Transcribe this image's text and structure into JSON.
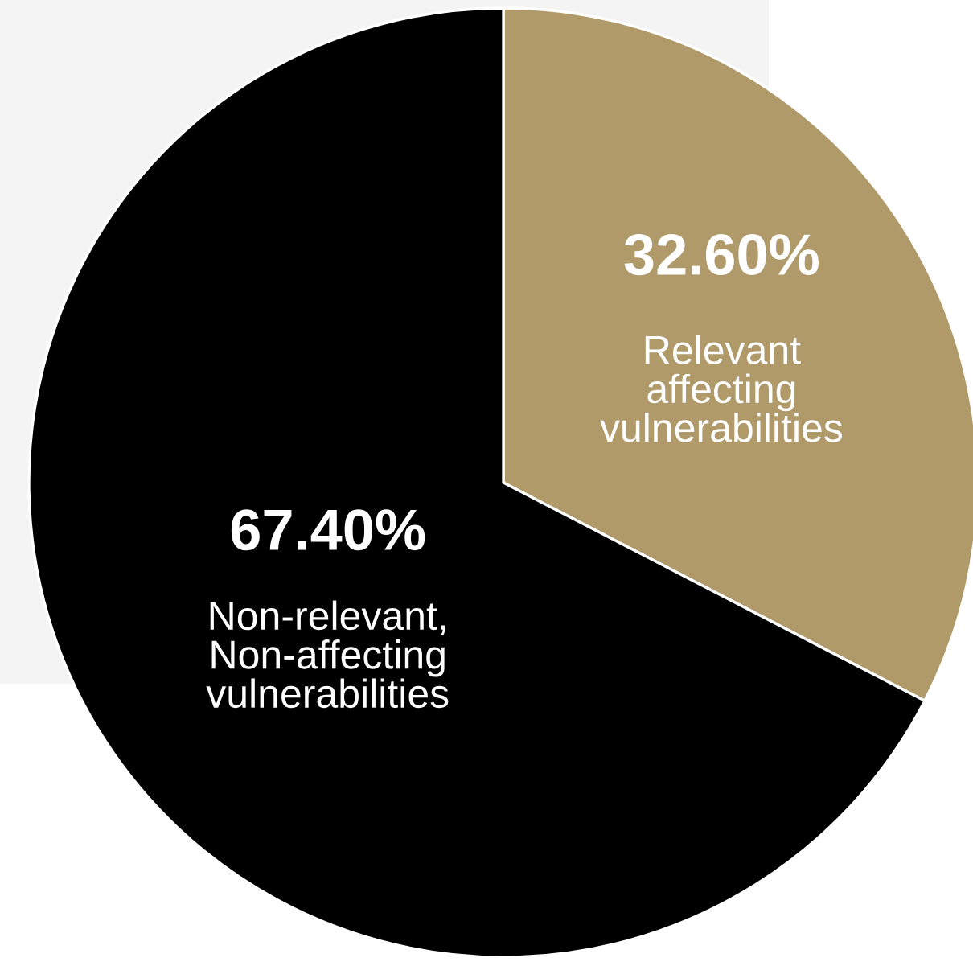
{
  "chart_data": {
    "type": "pie",
    "categories": [
      "Relevant\naffecting\nvulnerabilities",
      "Non-relevant,\nNon-affecting\nvulnerabilities"
    ],
    "values": [
      32.6,
      67.4
    ],
    "value_labels": [
      "32.60%",
      "67.40%"
    ],
    "colors": [
      "#b09a6a",
      "#000000"
    ],
    "legend": false
  }
}
